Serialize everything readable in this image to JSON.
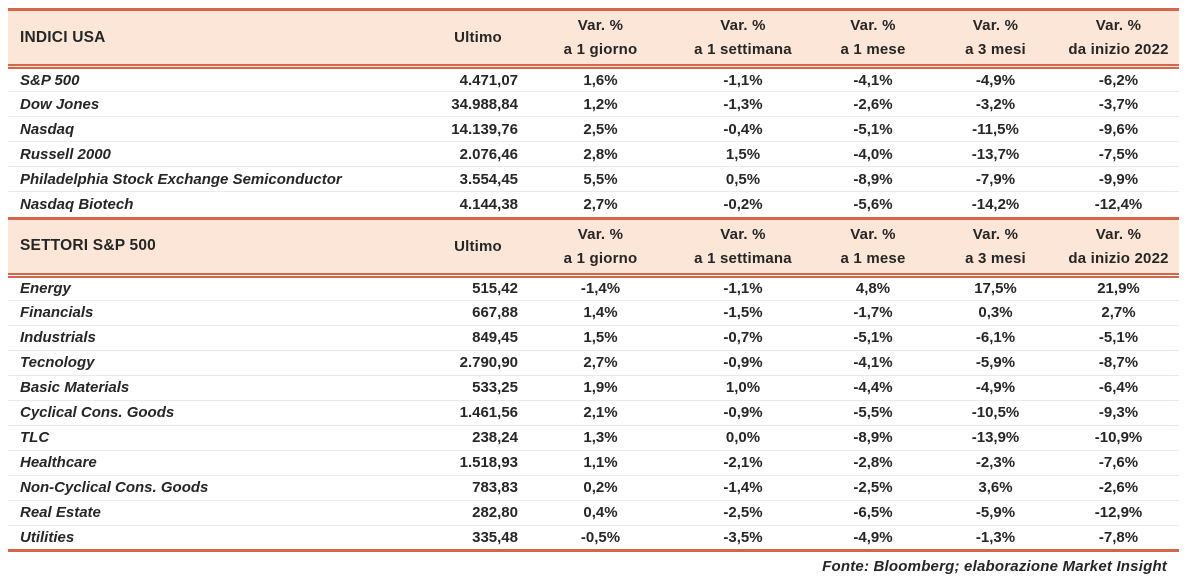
{
  "colors": {
    "accent": "#d5664a",
    "header_bg": "#fbe6d8",
    "text": "#262626",
    "row_separator": "#eae8f0"
  },
  "table": {
    "column_headers": {
      "ultimo": "Ultimo",
      "vars": [
        {
          "top": "Var. %",
          "bottom": "a 1 giorno"
        },
        {
          "top": "Var. %",
          "bottom": "a 1 settimana"
        },
        {
          "top": "Var. %",
          "bottom": "a 1 mese"
        },
        {
          "top": "Var. %",
          "bottom": "a 3 mesi"
        },
        {
          "top": "Var. %",
          "bottom": "da inizio 2022"
        }
      ]
    }
  },
  "chart_data": [
    {
      "type": "table",
      "title": "INDICI USA",
      "columns": [
        "INDICI USA",
        "Ultimo",
        "Var. % a 1 giorno",
        "Var. % a 1 settimana",
        "Var. % a 1 mese",
        "Var. % a 3 mesi",
        "Var. % da inizio 2022"
      ],
      "rows": [
        [
          "S&P 500",
          "4.471,07",
          "1,6%",
          "-1,1%",
          "-4,1%",
          "-4,9%",
          "-6,2%"
        ],
        [
          "Dow Jones",
          "34.988,84",
          "1,2%",
          "-1,3%",
          "-2,6%",
          "-3,2%",
          "-3,7%"
        ],
        [
          "Nasdaq",
          "14.139,76",
          "2,5%",
          "-0,4%",
          "-5,1%",
          "-11,5%",
          "-9,6%"
        ],
        [
          "Russell 2000",
          "2.076,46",
          "2,8%",
          "1,5%",
          "-4,0%",
          "-13,7%",
          "-7,5%"
        ],
        [
          "Philadelphia Stock Exchange Semiconductor",
          "3.554,45",
          "5,5%",
          "0,5%",
          "-8,9%",
          "-7,9%",
          "-9,9%"
        ],
        [
          "Nasdaq Biotech",
          "4.144,38",
          "2,7%",
          "-0,2%",
          "-5,6%",
          "-14,2%",
          "-12,4%"
        ]
      ]
    },
    {
      "type": "table",
      "title": "SETTORI S&P 500",
      "columns": [
        "SETTORI S&P 500",
        "Ultimo",
        "Var. % a 1 giorno",
        "Var. % a 1 settimana",
        "Var. % a 1 mese",
        "Var. % a 3 mesi",
        "Var. % da inizio 2022"
      ],
      "rows": [
        [
          "Energy",
          "515,42",
          "-1,4%",
          "-1,1%",
          "4,8%",
          "17,5%",
          "21,9%"
        ],
        [
          "Financials",
          "667,88",
          "1,4%",
          "-1,5%",
          "-1,7%",
          "0,3%",
          "2,7%"
        ],
        [
          "Industrials",
          "849,45",
          "1,5%",
          "-0,7%",
          "-5,1%",
          "-6,1%",
          "-5,1%"
        ],
        [
          "Tecnology",
          "2.790,90",
          "2,7%",
          "-0,9%",
          "-4,1%",
          "-5,9%",
          "-8,7%"
        ],
        [
          "Basic Materials",
          "533,25",
          "1,9%",
          "1,0%",
          "-4,4%",
          "-4,9%",
          "-6,4%"
        ],
        [
          "Cyclical Cons. Goods",
          "1.461,56",
          "2,1%",
          "-0,9%",
          "-5,5%",
          "-10,5%",
          "-9,3%"
        ],
        [
          "TLC",
          "238,24",
          "1,3%",
          "0,0%",
          "-8,9%",
          "-13,9%",
          "-10,9%"
        ],
        [
          "Healthcare",
          "1.518,93",
          "1,1%",
          "-2,1%",
          "-2,8%",
          "-2,3%",
          "-7,6%"
        ],
        [
          "Non-Cyclical Cons. Goods",
          "783,83",
          "0,2%",
          "-1,4%",
          "-2,5%",
          "3,6%",
          "-2,6%"
        ],
        [
          "Real Estate",
          "282,80",
          "0,4%",
          "-2,5%",
          "-6,5%",
          "-5,9%",
          "-12,9%"
        ],
        [
          "Utilities",
          "335,48",
          "-0,5%",
          "-3,5%",
          "-4,9%",
          "-1,3%",
          "-7,8%"
        ]
      ]
    }
  ],
  "footer": {
    "source": "Fonte: Bloomberg; elaborazione Market Insight"
  }
}
